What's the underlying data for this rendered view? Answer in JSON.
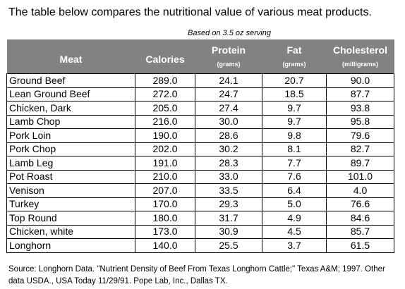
{
  "intro": "The table below compares the nutritional value of various meat products.",
  "serving_note": "Based on 3.5 oz serving",
  "headers": {
    "meat": "Meat",
    "calories": "Calories",
    "protein": "Protein",
    "protein_unit": "(grams)",
    "fat": "Fat",
    "fat_unit": "(grams)",
    "cholesterol": "Cholesterol",
    "cholesterol_unit": "(milligrams)"
  },
  "rows": [
    {
      "meat": "Ground Beef",
      "calories": "289.0",
      "protein": "24.1",
      "fat": "20.7",
      "cholesterol": "90.0"
    },
    {
      "meat": "Lean Ground Beef",
      "calories": "272.0",
      "protein": "24.7",
      "fat": "18.5",
      "cholesterol": "87.7"
    },
    {
      "meat": "Chicken, Dark",
      "calories": "205.0",
      "protein": "27.4",
      "fat": "9.7",
      "cholesterol": "93.8"
    },
    {
      "meat": "Lamb Chop",
      "calories": "216.0",
      "protein": "30.0",
      "fat": "9.7",
      "cholesterol": "95.8"
    },
    {
      "meat": "Pork Loin",
      "calories": "190.0",
      "protein": "28.6",
      "fat": "9.8",
      "cholesterol": "79.6"
    },
    {
      "meat": "Pork Chop",
      "calories": "202.0",
      "protein": "30.2",
      "fat": "8.1",
      "cholesterol": "82.7"
    },
    {
      "meat": "Lamb Leg",
      "calories": "191.0",
      "protein": "28.3",
      "fat": "7.7",
      "cholesterol": "89.7"
    },
    {
      "meat": "Pot Roast",
      "calories": "210.0",
      "protein": "33.0",
      "fat": "7.6",
      "cholesterol": "101.0"
    },
    {
      "meat": "Venison",
      "calories": "207.0",
      "protein": "33.5",
      "fat": "6.4",
      "cholesterol": "4.0"
    },
    {
      "meat": "Turkey",
      "calories": "170.0",
      "protein": "29.3",
      "fat": "5.0",
      "cholesterol": "76.6"
    },
    {
      "meat": "Top Round",
      "calories": "180.0",
      "protein": "31.7",
      "fat": "4.9",
      "cholesterol": "84.6"
    },
    {
      "meat": "Chicken, white",
      "calories": "173.0",
      "protein": "30.9",
      "fat": "4.5",
      "cholesterol": "85.7"
    },
    {
      "meat": "Longhorn",
      "calories": "140.0",
      "protein": "25.5",
      "fat": "3.7",
      "cholesterol": "61.5"
    }
  ],
  "source": "Source: Longhorn Data. \"Nutrient Density of Beef From Texas Longhorn Cattle;\" Texas A&M; 1997. Other data USDA., USA Today 11/29/91. Pope Lab, Inc., Dallas TX.",
  "colors": {
    "header_bg": "#828282",
    "header_text": "#ffffff",
    "border": "#000000"
  }
}
